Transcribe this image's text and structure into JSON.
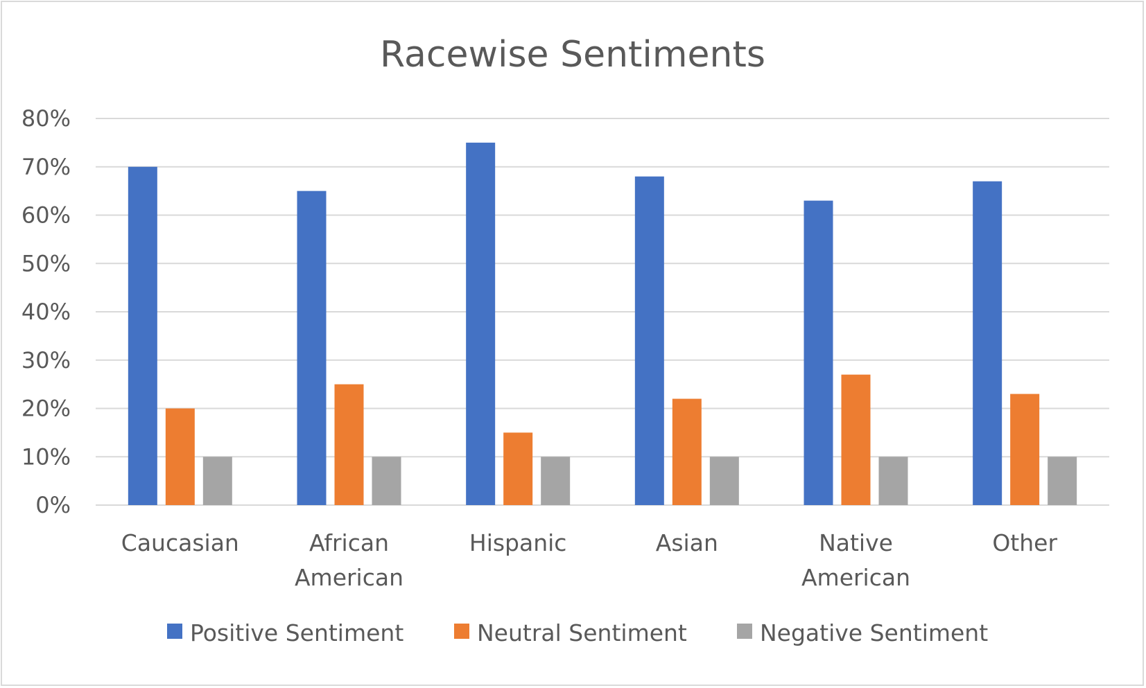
{
  "chart_data": {
    "type": "bar",
    "title": "Racewise Sentiments",
    "xlabel": "",
    "ylabel": "",
    "categories": [
      "Caucasian",
      "African American",
      "Hispanic",
      "Asian",
      "Native American",
      "Other"
    ],
    "series": [
      {
        "name": "Positive Sentiment",
        "color": "#4472c4",
        "values": [
          70,
          65,
          75,
          68,
          63,
          67
        ]
      },
      {
        "name": "Neutral Sentiment",
        "color": "#ed7d31",
        "values": [
          20,
          25,
          15,
          22,
          27,
          23
        ]
      },
      {
        "name": "Negative Sentiment",
        "color": "#a5a5a5",
        "values": [
          10,
          10,
          10,
          10,
          10,
          10
        ]
      }
    ],
    "ylim": [
      0,
      80
    ],
    "yticks": [
      "0%",
      "10%",
      "20%",
      "30%",
      "40%",
      "50%",
      "60%",
      "70%",
      "80%"
    ],
    "grid": true,
    "gridline_color": "#d9d9d9",
    "legend_position": "bottom"
  }
}
